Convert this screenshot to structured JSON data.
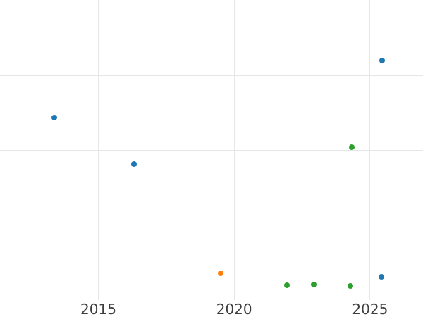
{
  "chart_data": {
    "type": "scatter",
    "title": "",
    "xlabel": "",
    "ylabel": "",
    "grid": true,
    "legend": "none",
    "x_ticks": [
      2015,
      2020,
      2025
    ],
    "x_tick_labels": [
      "2015",
      "2020",
      "2025"
    ],
    "x_range": [
      2011.38,
      2026.95
    ],
    "y_range": [
      0,
      4.01
    ],
    "y_axis": {
      "labels_visible": false,
      "gridline_values": [
        1,
        2,
        3
      ],
      "note": "y values estimated in gridline units; no y tick labels are visible in the image"
    },
    "marker_diameter_px": 8,
    "series": [
      {
        "name": "blue",
        "color": "#1f77b4",
        "points": [
          {
            "x": 2013.38,
            "y": 2.44
          },
          {
            "x": 2016.32,
            "y": 1.82
          },
          {
            "x": 2025.44,
            "y": 3.2
          },
          {
            "x": 2025.41,
            "y": 0.31
          }
        ]
      },
      {
        "name": "orange",
        "color": "#ff7f0e",
        "points": [
          {
            "x": 2019.51,
            "y": 0.36
          }
        ]
      },
      {
        "name": "green",
        "color": "#2ca02c",
        "points": [
          {
            "x": 2021.93,
            "y": 0.2
          },
          {
            "x": 2022.92,
            "y": 0.21
          },
          {
            "x": 2024.28,
            "y": 0.19
          },
          {
            "x": 2024.32,
            "y": 2.04
          }
        ]
      }
    ]
  },
  "style": {
    "background": "#ffffff",
    "grid_color": "#e6e6e6",
    "tick_label_color": "#3d3d3d"
  }
}
